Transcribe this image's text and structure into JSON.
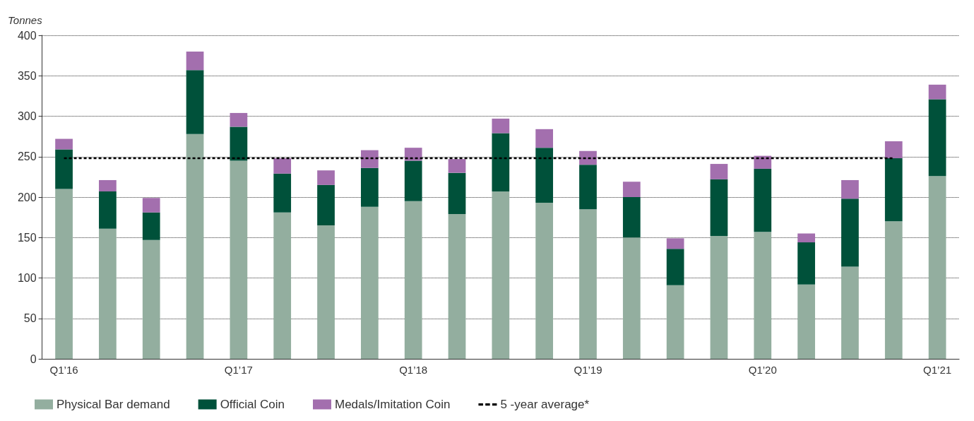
{
  "chart_data": {
    "type": "bar",
    "stacked": true,
    "ylabel": "Tonnes",
    "categories": [
      "Q1’16",
      null,
      null,
      null,
      "Q1’17",
      null,
      null,
      null,
      "Q1’18",
      null,
      null,
      null,
      "Q1’19",
      null,
      null,
      null,
      "Q1’20",
      null,
      null,
      null,
      "Q1’21"
    ],
    "series": [
      {
        "name": "Physical Bar demand",
        "color": "#93ae9f",
        "values": [
          210,
          161,
          147,
          278,
          245,
          181,
          165,
          188,
          195,
          179,
          207,
          193,
          185,
          150,
          91,
          152,
          157,
          92,
          114,
          170,
          226
        ]
      },
      {
        "name": "Official Coin",
        "color": "#00513a",
        "values": [
          49,
          46,
          34,
          79,
          42,
          48,
          50,
          48,
          50,
          51,
          72,
          68,
          55,
          50,
          45,
          70,
          78,
          52,
          84,
          78,
          95
        ]
      },
      {
        "name": "Medals/Imitation Coin",
        "color": "#a36fae",
        "values": [
          13,
          14,
          18,
          23,
          17,
          19,
          18,
          22,
          16,
          17,
          18,
          23,
          17,
          19,
          13,
          19,
          16,
          11,
          23,
          21,
          18
        ]
      },
      {
        "name": "5 -year average*",
        "type": "line",
        "color": "#000000",
        "line_style": "dashed",
        "marker": "none",
        "values": [
          248,
          248,
          248,
          248,
          248,
          248,
          248,
          248,
          248,
          248,
          248,
          248,
          248,
          248,
          248,
          248,
          248,
          248,
          248,
          248,
          null
        ]
      }
    ],
    "ylim": [
      0,
      400
    ],
    "yticks": [
      0,
      50,
      100,
      150,
      200,
      250,
      300,
      350,
      400
    ],
    "grid": "y",
    "legend": "bottom left"
  }
}
